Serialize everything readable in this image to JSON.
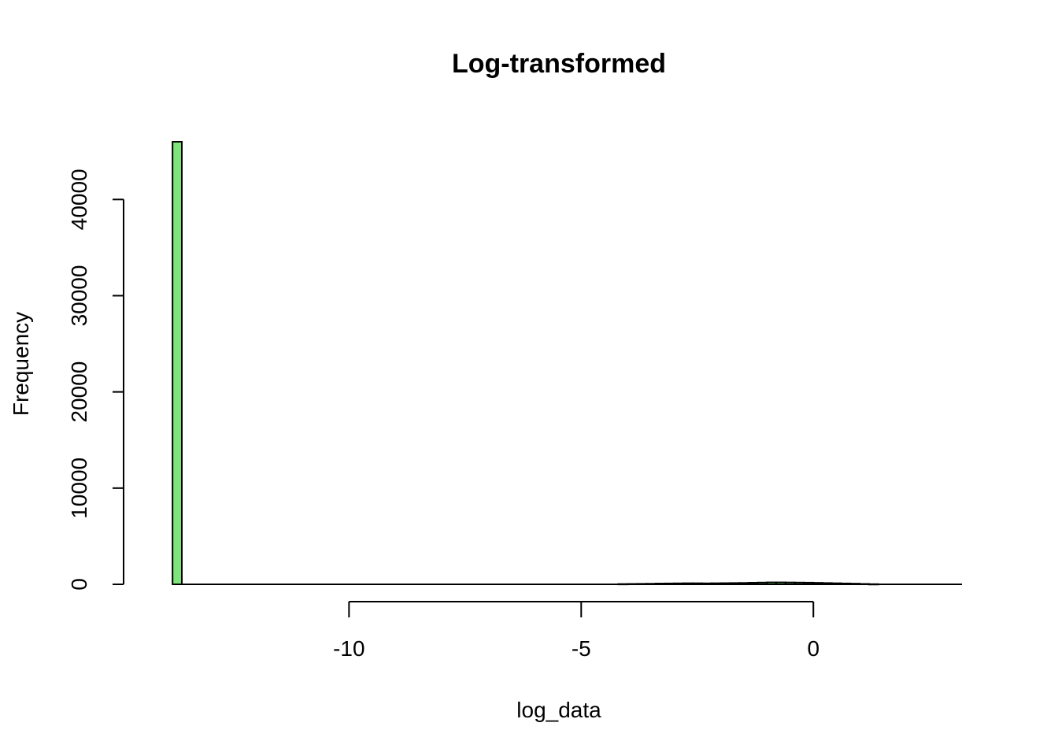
{
  "chart_data": {
    "type": "bar",
    "title": "Log-transformed",
    "xlabel": "log_data",
    "ylabel": "Frequency",
    "bar_color": "#7FE47A",
    "bin_width": 0.2,
    "xlim": [
      -14.6,
      3.2
    ],
    "ylim": [
      0,
      46000
    ],
    "x_ticks": [
      -10,
      -5,
      0
    ],
    "x_tick_labels": [
      "-10",
      "-5",
      "0"
    ],
    "y_ticks": [
      0,
      10000,
      20000,
      30000,
      40000
    ],
    "y_tick_labels": [
      "0",
      "10000",
      "20000",
      "30000",
      "40000"
    ],
    "bins": [
      {
        "x0": -13.8,
        "x1": -13.6,
        "count": 46000
      },
      {
        "x0": -4.2,
        "x1": -4.0,
        "count": 30
      },
      {
        "x0": -4.0,
        "x1": -3.8,
        "count": 40
      },
      {
        "x0": -3.8,
        "x1": -3.6,
        "count": 50
      },
      {
        "x0": -3.6,
        "x1": -3.4,
        "count": 60
      },
      {
        "x0": -3.4,
        "x1": -3.2,
        "count": 80
      },
      {
        "x0": -3.2,
        "x1": -3.0,
        "count": 90
      },
      {
        "x0": -3.0,
        "x1": -2.8,
        "count": 100
      },
      {
        "x0": -2.8,
        "x1": -2.6,
        "count": 110
      },
      {
        "x0": -2.6,
        "x1": -2.4,
        "count": 110
      },
      {
        "x0": -2.4,
        "x1": -2.2,
        "count": 100
      },
      {
        "x0": -2.2,
        "x1": -2.0,
        "count": 110
      },
      {
        "x0": -2.0,
        "x1": -1.8,
        "count": 120
      },
      {
        "x0": -1.8,
        "x1": -1.6,
        "count": 130
      },
      {
        "x0": -1.6,
        "x1": -1.4,
        "count": 140
      },
      {
        "x0": -1.4,
        "x1": -1.2,
        "count": 160
      },
      {
        "x0": -1.2,
        "x1": -1.0,
        "count": 180
      },
      {
        "x0": -1.0,
        "x1": -0.8,
        "count": 200
      },
      {
        "x0": -0.8,
        "x1": -0.6,
        "count": 200
      },
      {
        "x0": -0.6,
        "x1": -0.4,
        "count": 190
      },
      {
        "x0": -0.4,
        "x1": -0.2,
        "count": 180
      },
      {
        "x0": -0.2,
        "x1": 0.0,
        "count": 170
      },
      {
        "x0": 0.0,
        "x1": 0.2,
        "count": 150
      },
      {
        "x0": 0.2,
        "x1": 0.4,
        "count": 130
      },
      {
        "x0": 0.4,
        "x1": 0.6,
        "count": 110
      },
      {
        "x0": 0.6,
        "x1": 0.8,
        "count": 90
      },
      {
        "x0": 0.8,
        "x1": 1.0,
        "count": 70
      },
      {
        "x0": 1.0,
        "x1": 1.2,
        "count": 40
      },
      {
        "x0": 1.2,
        "x1": 1.4,
        "count": 20
      }
    ]
  }
}
